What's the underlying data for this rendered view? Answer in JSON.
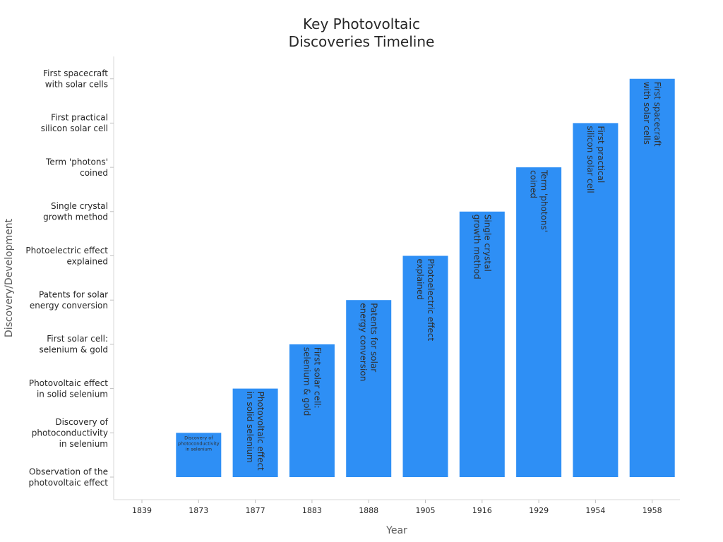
{
  "chart_data": {
    "type": "bar",
    "title_lines": [
      "Key Photovoltaic",
      "Discoveries Timeline"
    ],
    "xlabel": "Year",
    "ylabel": "Discovery/Development",
    "categories": [
      "1839",
      "1873",
      "1877",
      "1883",
      "1888",
      "1905",
      "1916",
      "1929",
      "1954",
      "1958"
    ],
    "y_ticks": [
      [
        "Observation of the",
        "photovoltaic effect"
      ],
      [
        "Discovery of",
        "photoconductivity",
        "in selenium"
      ],
      [
        "Photovoltaic effect",
        "in solid selenium"
      ],
      [
        "First solar cell:",
        "selenium & gold"
      ],
      [
        "Patents for solar",
        "energy conversion"
      ],
      [
        "Photoelectric effect",
        "explained"
      ],
      [
        "Single crystal",
        "growth method"
      ],
      [
        "Term 'photons'",
        "coined"
      ],
      [
        "First practical",
        "silicon solar cell"
      ],
      [
        "First spacecraft",
        "with solar cells"
      ]
    ],
    "values": [
      0,
      1,
      2,
      3,
      4,
      5,
      6,
      7,
      8,
      9
    ],
    "ylim": [
      -0.5,
      9.5
    ],
    "bar_color": "#2e8ff5",
    "grid": false,
    "legend": "none"
  }
}
